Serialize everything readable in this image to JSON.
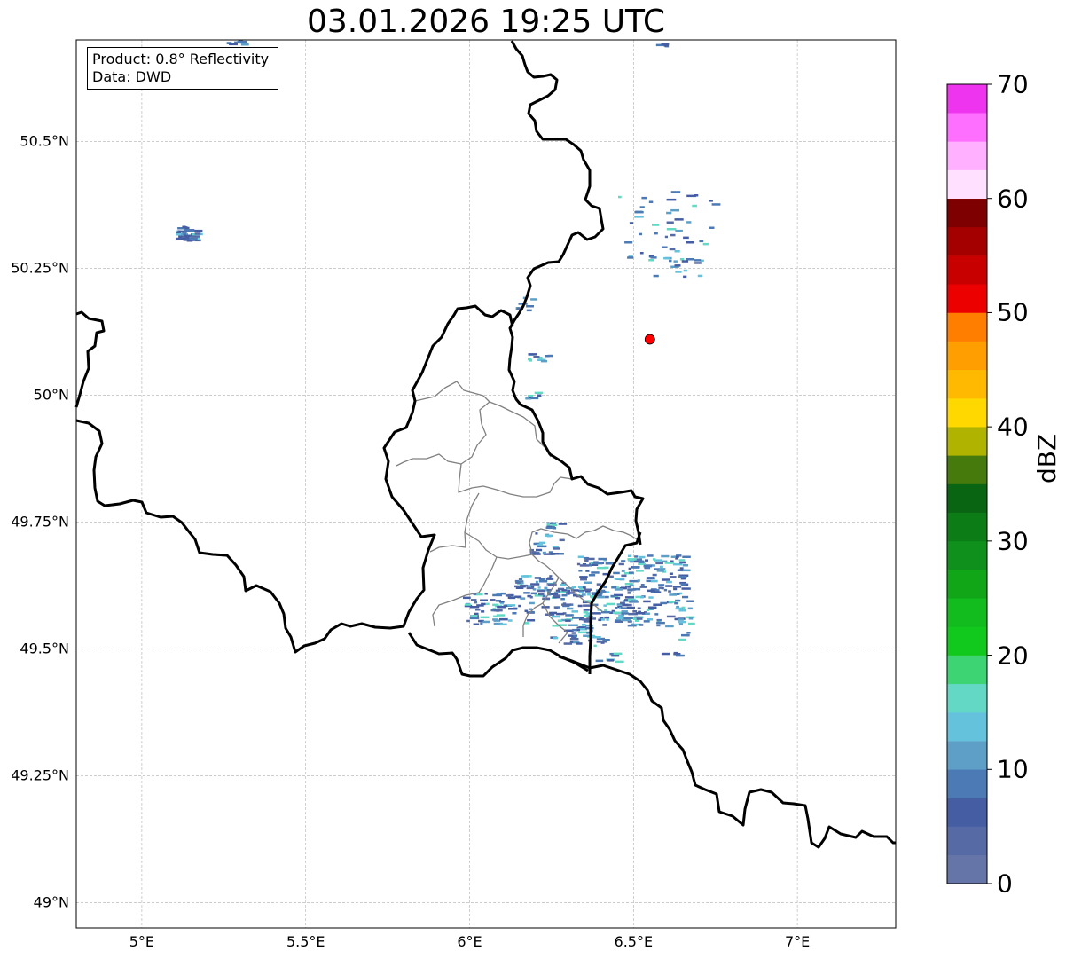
{
  "title": "03.01.2026 19:25 UTC",
  "info": {
    "product": "Product: 0.8° Reflectivity",
    "source": "Data: DWD"
  },
  "map": {
    "lon_range": [
      4.8,
      7.3
    ],
    "lat_range": [
      48.95,
      50.7
    ],
    "lat_ticks": [
      {
        "value": 50.5,
        "label": "50.5°N"
      },
      {
        "value": 50.25,
        "label": "50.25°N"
      },
      {
        "value": 50.0,
        "label": "50°N"
      },
      {
        "value": 49.75,
        "label": "49.75°N"
      },
      {
        "value": 49.5,
        "label": "49.5°N"
      },
      {
        "value": 49.25,
        "label": "49.25°N"
      },
      {
        "value": 49.0,
        "label": "49°N"
      }
    ],
    "lon_ticks": [
      {
        "value": 5.0,
        "label": "5°E"
      },
      {
        "value": 5.5,
        "label": "5.5°E"
      },
      {
        "value": 6.0,
        "label": "6°E"
      },
      {
        "value": 6.5,
        "label": "6.5°E"
      },
      {
        "value": 7.0,
        "label": "7°E"
      }
    ],
    "gridlines": true,
    "radar_site": {
      "lon": 6.55,
      "lat": 50.11,
      "color": "#ff0000"
    }
  },
  "colorbar": {
    "label": "dBZ",
    "vmin": 0,
    "vmax": 70,
    "step": 2.5,
    "ticks": [
      {
        "value": 0,
        "label": "0"
      },
      {
        "value": 10,
        "label": "10"
      },
      {
        "value": 20,
        "label": "20"
      },
      {
        "value": 30,
        "label": "30"
      },
      {
        "value": 40,
        "label": "40"
      },
      {
        "value": 50,
        "label": "50"
      },
      {
        "value": 60,
        "label": "60"
      },
      {
        "value": 70,
        "label": "70"
      }
    ],
    "colors": [
      "#6675a8",
      "#566aa5",
      "#455ea3",
      "#4c7ab4",
      "#5e9fc8",
      "#65c2dd",
      "#63d9c5",
      "#3dd574",
      "#11c81c",
      "#12bb1e",
      "#10a617",
      "#0f901c",
      "#0c7d16",
      "#096512",
      "#467a0c",
      "#b0b300",
      "#ffd800",
      "#ffba00",
      "#ff9e00",
      "#ff7e00",
      "#ec0000",
      "#c80000",
      "#a40000",
      "#7e0000",
      "#ffe0ff",
      "#ffb0ff",
      "#ff6fff",
      "#ee34ee"
    ]
  }
}
